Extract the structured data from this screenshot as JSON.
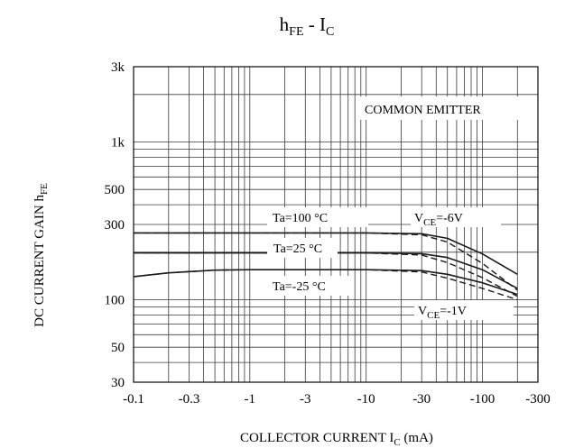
{
  "chart_data": {
    "type": "line",
    "title": {
      "main": "h",
      "sub": "FE",
      "rest": " - I",
      "sub2": "C"
    },
    "xlabel": {
      "main": "COLLECTOR CURRENT I",
      "sub": "C",
      "rest": "  (mA)"
    },
    "ylabel": {
      "main": "DC CURRENT GAIN h",
      "sub": "FE"
    },
    "x_scale": "log",
    "y_scale": "log",
    "xlim": [
      -0.1,
      -300
    ],
    "ylim": [
      30,
      3000
    ],
    "x_ticks": [
      {
        "value": -0.1,
        "label": "-0.1"
      },
      {
        "value": -0.3,
        "label": "-0.3"
      },
      {
        "value": -1,
        "label": "-1"
      },
      {
        "value": -3,
        "label": "-3"
      },
      {
        "value": -10,
        "label": "-10"
      },
      {
        "value": -30,
        "label": "-30"
      },
      {
        "value": -100,
        "label": "-100"
      },
      {
        "value": -300,
        "label": "-300"
      }
    ],
    "y_ticks": [
      {
        "value": 30,
        "label": "30"
      },
      {
        "value": 50,
        "label": "50"
      },
      {
        "value": 100,
        "label": "100"
      },
      {
        "value": 300,
        "label": "300"
      },
      {
        "value": 500,
        "label": "500"
      },
      {
        "value": 1000,
        "label": "1k"
      },
      {
        "value": 3000,
        "label": "3k"
      }
    ],
    "grid": true,
    "annotations": {
      "common_emitter": "COMMON EMITTER",
      "vce_high": {
        "main": "V",
        "sub": "CE",
        "rest": "=-6V"
      },
      "vce_low": {
        "main": "V",
        "sub": "CE",
        "rest": "=-1V"
      }
    },
    "series": [
      {
        "name": "Ta=100 °C",
        "condition": "VCE=-6V",
        "style": "solid",
        "x": [
          -0.1,
          -1,
          -10,
          -30,
          -50,
          -100,
          -200
        ],
        "y": [
          265,
          265,
          265,
          262,
          245,
          195,
          145
        ]
      },
      {
        "name": "Ta=100 °C",
        "condition": "VCE=-1V",
        "style": "dashed",
        "x": [
          -0.1,
          -1,
          -10,
          -30,
          -50,
          -100,
          -200
        ],
        "y": [
          265,
          265,
          265,
          258,
          232,
          170,
          115
        ]
      },
      {
        "name": "Ta=25 °C",
        "condition": "VCE=-6V",
        "style": "solid",
        "x": [
          -0.1,
          -1,
          -10,
          -30,
          -50,
          -100,
          -200
        ],
        "y": [
          198,
          198,
          198,
          196,
          185,
          155,
          118
        ]
      },
      {
        "name": "Ta=25 °C",
        "condition": "VCE=-1V",
        "style": "dashed",
        "x": [
          -0.1,
          -1,
          -10,
          -30,
          -50,
          -100,
          -200
        ],
        "y": [
          198,
          198,
          198,
          192,
          172,
          138,
          105
        ]
      },
      {
        "name": "Ta=-25 °C",
        "condition": "VCE=-6V",
        "style": "solid",
        "x": [
          -0.1,
          -0.2,
          -0.5,
          -1,
          -10,
          -30,
          -50,
          -100,
          -200
        ],
        "y": [
          140,
          148,
          154,
          155,
          155,
          153,
          145,
          128,
          108
        ]
      },
      {
        "name": "Ta=-25 °C",
        "condition": "VCE=-1V",
        "style": "dashed",
        "x": [
          -0.1,
          -0.2,
          -0.5,
          -1,
          -10,
          -30,
          -50,
          -100,
          -200
        ],
        "y": [
          140,
          148,
          154,
          155,
          155,
          150,
          137,
          118,
          100
        ]
      }
    ],
    "series_labels": [
      "Ta=100 °C",
      "Ta=25 °C",
      "Ta=-25 °C"
    ]
  }
}
